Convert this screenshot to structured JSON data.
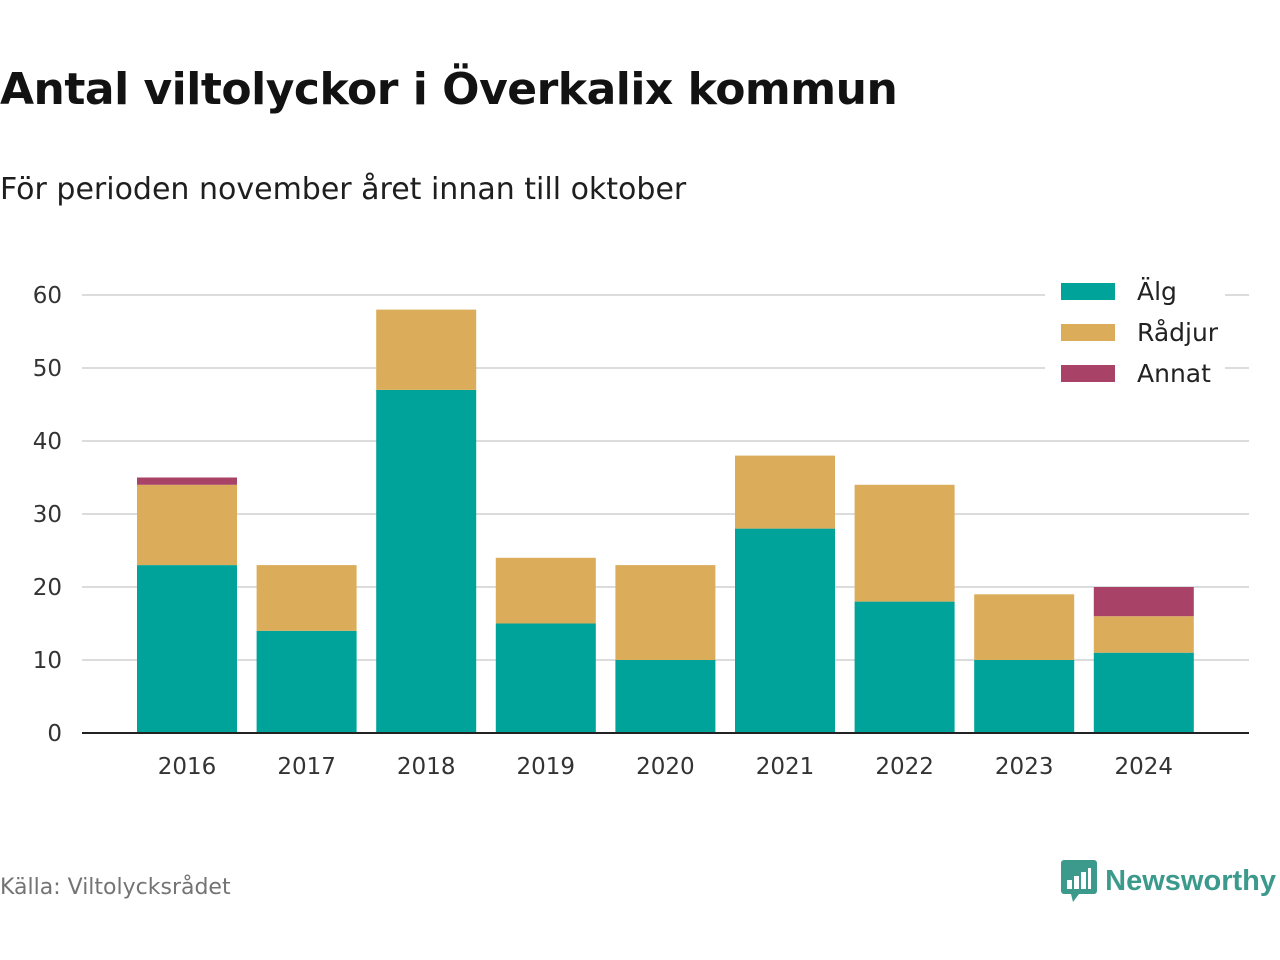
{
  "title": "Antal viltolyckor i Överkalix kommun",
  "subtitle": "För perioden november året innan till oktober",
  "source": "Källa: Viltolycksrådet",
  "brand": {
    "name": "Newsworthy",
    "icon": "newsworthy-logo-icon",
    "color": "#3c9a8c"
  },
  "chart_data": {
    "type": "bar",
    "stacked": true,
    "categories": [
      "2016",
      "2017",
      "2018",
      "2019",
      "2020",
      "2021",
      "2022",
      "2023",
      "2024"
    ],
    "series": [
      {
        "name": "Älg",
        "color": "#00a39a",
        "values": [
          23,
          14,
          47,
          15,
          10,
          28,
          18,
          10,
          11
        ]
      },
      {
        "name": "Rådjur",
        "color": "#dbad5a",
        "values": [
          11,
          9,
          11,
          9,
          13,
          10,
          16,
          9,
          5
        ]
      },
      {
        "name": "Annat",
        "color": "#a84367",
        "values": [
          1,
          0,
          0,
          0,
          0,
          0,
          0,
          0,
          4
        ]
      }
    ],
    "yticks": [
      "0",
      "10",
      "20",
      "30",
      "40",
      "50",
      "60"
    ],
    "ylim": [
      0,
      60
    ],
    "grid": true,
    "legend": "top-right"
  }
}
